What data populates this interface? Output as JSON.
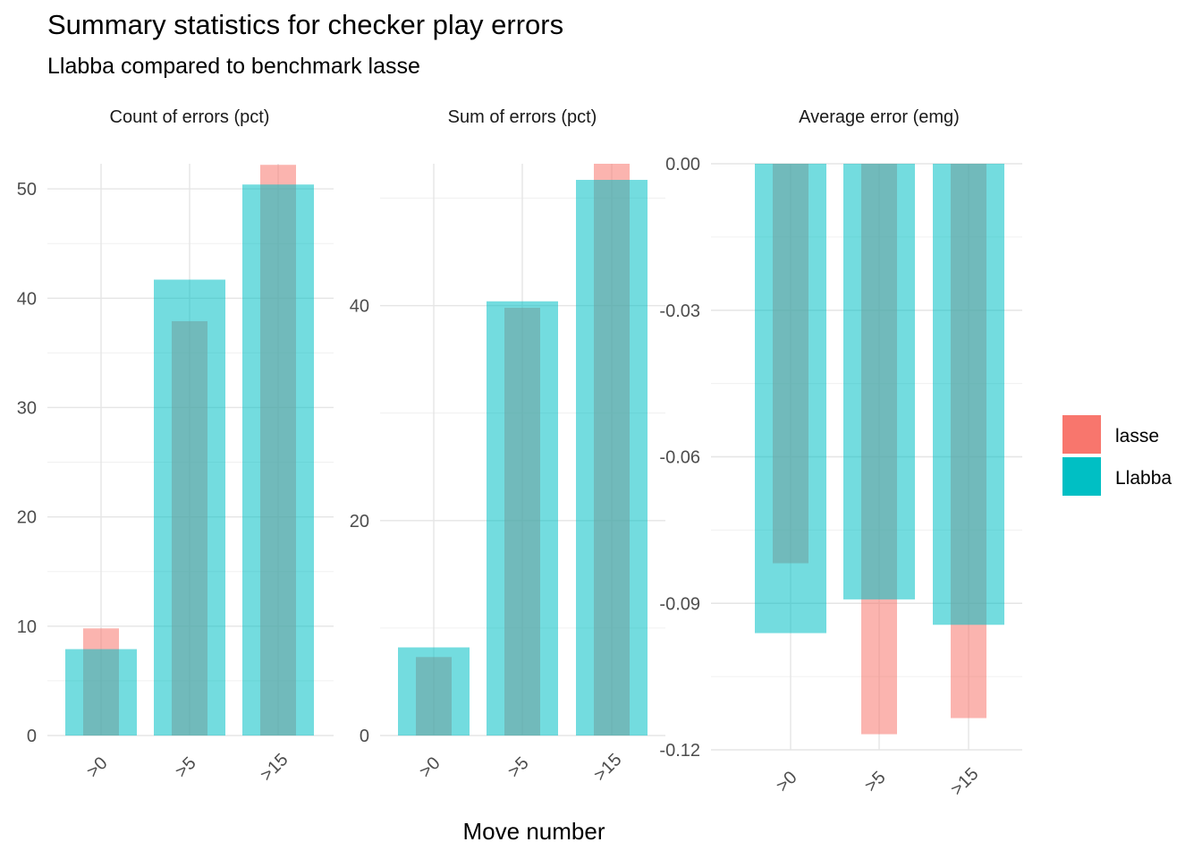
{
  "title": "Summary statistics for checker play errors",
  "subtitle": "Llabba compared to benchmark lasse",
  "colors": {
    "lasse": "#F8766D",
    "Llabba": "#00BFC4"
  },
  "chart_data": {
    "type": "bar",
    "xlabel": "Move number",
    "categories": [
      ">0",
      ">5",
      ">15"
    ],
    "legend": {
      "position": "right",
      "entries": [
        "lasse",
        "Llabba"
      ]
    },
    "grid": true,
    "panels": [
      {
        "strip": "Count of errors (pct)",
        "ylim": [
          0,
          52.3
        ],
        "yticks": [
          0,
          10,
          20,
          30,
          40,
          50
        ],
        "ytick_labels": [
          "0",
          "10",
          "20",
          "30",
          "40",
          "50"
        ],
        "series": [
          {
            "name": "lasse",
            "values": [
              9.8,
              37.9,
              52.2
            ]
          },
          {
            "name": "Llabba",
            "values": [
              7.9,
              41.7,
              50.4
            ]
          }
        ]
      },
      {
        "strip": "Sum of errors (pct)",
        "ylim": [
          0,
          53.2
        ],
        "yticks": [
          0,
          20,
          40
        ],
        "ytick_labels": [
          "0",
          "20",
          "40"
        ],
        "series": [
          {
            "name": "lasse",
            "values": [
              7.3,
              39.8,
              53.2
            ]
          },
          {
            "name": "Llabba",
            "values": [
              8.2,
              40.4,
              51.7
            ]
          }
        ]
      },
      {
        "strip": "Average error (emg)",
        "ylim": [
          -0.12,
          0
        ],
        "yticks": [
          0,
          -0.03,
          -0.06,
          -0.09,
          -0.12
        ],
        "ytick_labels": [
          "0.00",
          "-0.03",
          "-0.06",
          "-0.09",
          "-0.12"
        ],
        "series": [
          {
            "name": "lasse",
            "values": [
              -0.0818,
              -0.1168,
              -0.1135
            ]
          },
          {
            "name": "Llabba",
            "values": [
              -0.0961,
              -0.0892,
              -0.0944
            ]
          }
        ]
      }
    ]
  }
}
